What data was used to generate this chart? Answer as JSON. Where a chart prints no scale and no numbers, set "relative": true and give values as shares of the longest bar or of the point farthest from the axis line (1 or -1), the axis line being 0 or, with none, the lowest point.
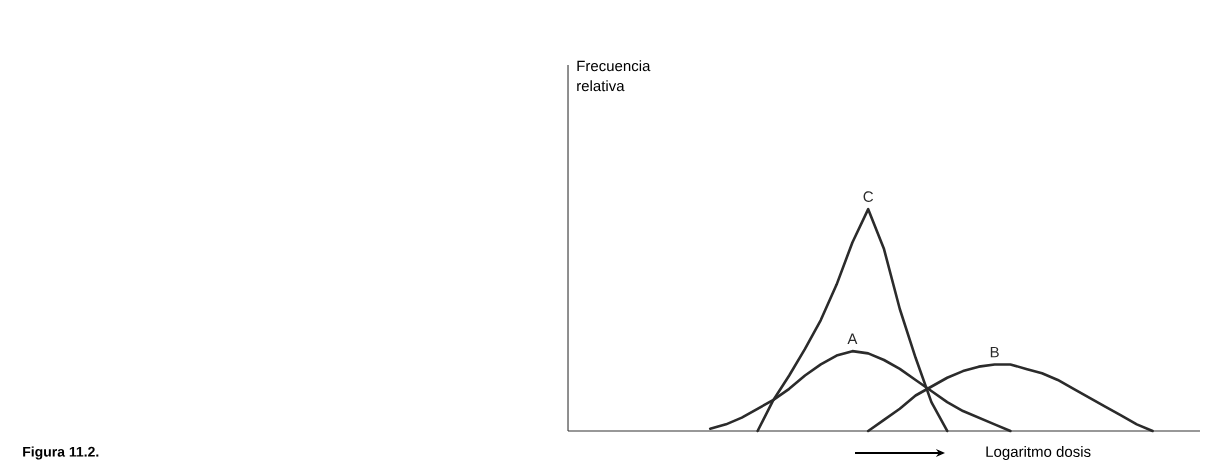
{
  "chart_data": {
    "type": "line",
    "relative": true,
    "xlabel": "Logaritmo dosis",
    "annotations": [
      "Frecuencia relativa",
      "Figura 11.2."
    ],
    "categories": [
      null,
      null,
      null,
      null,
      null,
      null,
      null,
      null,
      null,
      null,
      null,
      null,
      null,
      null,
      null,
      null,
      null,
      null,
      null,
      null,
      null,
      null,
      null,
      null,
      null,
      null,
      null,
      null,
      null,
      null,
      null,
      null,
      null,
      null,
      null,
      null,
      null,
      null,
      null,
      null,
      null
    ],
    "series": [
      {
        "name": "A",
        "color": "#2b2b2b",
        "values": [
          null,
          null,
          null,
          null,
          null,
          null,
          null,
          null,
          null,
          0.01,
          0.03,
          0.06,
          0.1,
          0.14,
          0.19,
          0.25,
          0.3,
          0.34,
          0.36,
          0.35,
          0.32,
          0.28,
          0.23,
          0.18,
          0.13,
          0.09,
          0.06,
          0.03,
          0,
          null,
          null,
          null,
          null,
          null,
          null,
          null,
          null,
          null,
          null,
          null,
          null
        ]
      },
      {
        "name": "B",
        "color": "#2b2b2b",
        "values": [
          null,
          null,
          null,
          null,
          null,
          null,
          null,
          null,
          null,
          null,
          null,
          null,
          null,
          null,
          null,
          null,
          null,
          null,
          null,
          0,
          0.05,
          0.1,
          0.16,
          0.2,
          0.24,
          0.27,
          0.29,
          0.3,
          0.3,
          0.28,
          0.26,
          0.23,
          0.19,
          0.15,
          0.11,
          0.07,
          0.03,
          0,
          null,
          null,
          null
        ]
      },
      {
        "name": "C",
        "color": "#2b2b2b",
        "values": [
          null,
          null,
          null,
          null,
          null,
          null,
          null,
          null,
          null,
          null,
          null,
          null,
          0,
          0.14,
          0.25,
          0.37,
          0.5,
          0.66,
          0.85,
          1,
          0.82,
          0.55,
          0.33,
          0.13,
          0,
          null,
          null,
          null,
          null,
          null,
          null,
          null,
          null,
          null,
          null,
          null,
          null,
          null,
          null,
          null,
          null
        ]
      }
    ]
  }
}
